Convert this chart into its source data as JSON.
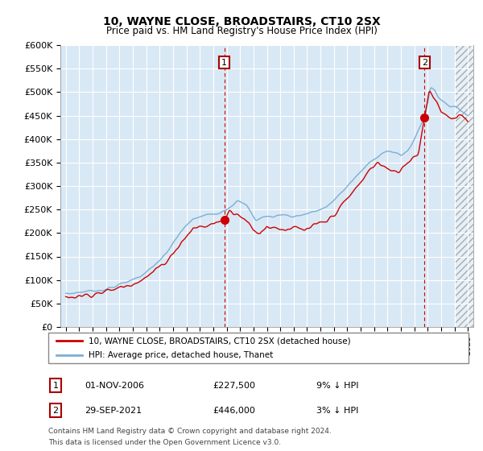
{
  "title": "10, WAYNE CLOSE, BROADSTAIRS, CT10 2SX",
  "subtitle": "Price paid vs. HM Land Registry's House Price Index (HPI)",
  "ylim": [
    0,
    600000
  ],
  "yticks": [
    0,
    50000,
    100000,
    150000,
    200000,
    250000,
    300000,
    350000,
    400000,
    450000,
    500000,
    550000,
    600000
  ],
  "ytick_labels": [
    "£0",
    "£50K",
    "£100K",
    "£150K",
    "£200K",
    "£250K",
    "£300K",
    "£350K",
    "£400K",
    "£450K",
    "£500K",
    "£550K",
    "£600K"
  ],
  "sale1_date": 2006.83,
  "sale1_price": 227500,
  "sale2_date": 2021.75,
  "sale2_price": 446000,
  "hpi_color": "#7bafd4",
  "price_color": "#cc0000",
  "legend_label1": "10, WAYNE CLOSE, BROADSTAIRS, CT10 2SX (detached house)",
  "legend_label2": "HPI: Average price, detached house, Thanet",
  "bg_color": "#d9e8f5",
  "footnote1": "Contains HM Land Registry data © Crown copyright and database right 2024.",
  "footnote2": "This data is licensed under the Open Government Licence v3.0."
}
